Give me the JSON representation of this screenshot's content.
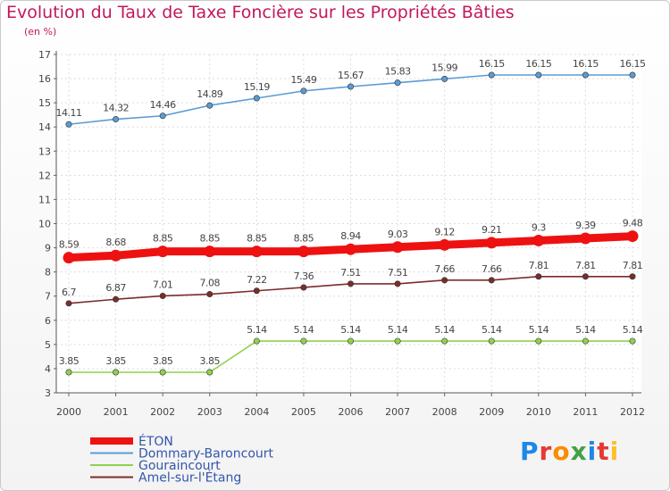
{
  "title": "Evolution du Taux de Taxe Foncière sur les Propriétés Bâties",
  "subtitle": "(en %)",
  "logo": {
    "text": "Proxiti",
    "colors": [
      "#1e88e5",
      "#e53935",
      "#fb8c00",
      "#43a047",
      "#1e88e5",
      "#e53935",
      "#fbc02d"
    ]
  },
  "chart_data": {
    "type": "line",
    "title": "Evolution du Taux de Taxe Foncière sur les Propriétés Bâties",
    "ylabel": "(en %)",
    "xlabel": "",
    "ylim": [
      3,
      17
    ],
    "yticks": [
      "3",
      "4",
      "5",
      "6",
      "7",
      "8",
      "9",
      "10",
      "11",
      "12",
      "13",
      "14",
      "15",
      "16",
      "17"
    ],
    "grid": true,
    "legend_position": "bottom-left",
    "x": [
      "2000",
      "2001",
      "2002",
      "2003",
      "2004",
      "2005",
      "2006",
      "2007",
      "2008",
      "2009",
      "2010",
      "2011",
      "2012"
    ],
    "series": [
      {
        "name": "ÉTON",
        "color": "#ee1111",
        "emphasis": true,
        "values": [
          8.59,
          8.68,
          8.85,
          8.85,
          8.85,
          8.85,
          8.94,
          9.03,
          9.12,
          9.21,
          9.3,
          9.39,
          9.48
        ],
        "labels": [
          "8.59",
          "8.68",
          "8.85",
          "8.85",
          "8.85",
          "8.85",
          "8.94",
          "9.03",
          "9.12",
          "9.21",
          "9.3",
          "9.39",
          "9.48"
        ]
      },
      {
        "name": "Dommary-Baroncourt",
        "color": "#5b9bd5",
        "emphasis": false,
        "values": [
          14.11,
          14.32,
          14.46,
          14.89,
          15.19,
          15.49,
          15.67,
          15.83,
          15.99,
          16.15,
          16.15,
          16.15,
          16.15
        ],
        "labels": [
          "14.11",
          "14.32",
          "14.46",
          "14.89",
          "15.19",
          "15.49",
          "15.67",
          "15.83",
          "15.99",
          "16.15",
          "16.15",
          "16.15",
          "16.15"
        ]
      },
      {
        "name": "Gouraincourt",
        "color": "#8fd14f",
        "emphasis": false,
        "values": [
          3.85,
          3.85,
          3.85,
          3.85,
          5.14,
          5.14,
          5.14,
          5.14,
          5.14,
          5.14,
          5.14,
          5.14,
          5.14
        ],
        "labels": [
          "3.85",
          "3.85",
          "3.85",
          "3.85",
          "5.14",
          "5.14",
          "5.14",
          "5.14",
          "5.14",
          "5.14",
          "5.14",
          "5.14",
          "5.14"
        ]
      },
      {
        "name": "Amel-sur-l'Étang",
        "color": "#7b2c2c",
        "emphasis": false,
        "values": [
          6.7,
          6.87,
          7.01,
          7.08,
          7.22,
          7.36,
          7.51,
          7.51,
          7.66,
          7.66,
          7.81,
          7.81,
          7.81
        ],
        "labels": [
          "6.7",
          "6.87",
          "7.01",
          "7.08",
          "7.22",
          "7.36",
          "7.51",
          "7.51",
          "7.66",
          "7.66",
          "7.81",
          "7.81",
          "7.81"
        ]
      }
    ]
  }
}
